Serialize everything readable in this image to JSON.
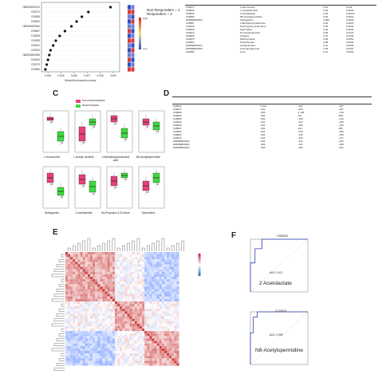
{
  "panels": {
    "a": "",
    "b": "",
    "c": "C",
    "d": "D",
    "e": "E",
    "f": "F"
  },
  "dotplot": {
    "labels": [
      "HMDB0062224",
      "C00072",
      "C00838",
      "C05842",
      "HMDB0062364",
      "C05587",
      "C16528",
      "C00059",
      "C05422",
      "C00300",
      "HMDB0062356",
      "C00060",
      "C03079",
      "C00864"
    ],
    "values": [
      0.0088,
      0.0071,
      0.0066,
      0.0062,
      0.0058,
      0.0053,
      0.0049,
      0.0046,
      0.0044,
      0.0042,
      0.0041,
      0.004,
      0.0039,
      0.0038
    ],
    "xticks": [
      "0.004",
      "0.005",
      "0.006",
      "0.007",
      "0.008",
      "0.009"
    ],
    "xlim": [
      0.0035,
      0.0095
    ],
    "xlabel": "MeanDecreaseAccuracy",
    "legend": "Non-Responders = 1\nResponders = 2",
    "colorbar_hi": "High",
    "colorbar_lo": "Low"
  },
  "table_b": {
    "rows": [
      [
        "C00072",
        "L-Homoserine",
        "0.01",
        "0.011"
      ],
      [
        "C00838",
        "L-Acetylcarnitine",
        "0.02",
        "0.0003"
      ],
      [
        "C05842",
        "2-Acetolactate",
        "0.04",
        "0.00147"
      ],
      [
        "C00059",
        "N8-Acetylspermidine",
        "0.04",
        "0.0013"
      ],
      [
        "HMDB0062364",
        "Sphinganine",
        "0.005",
        "0.0006"
      ],
      [
        "C05587",
        "2-Methylbutyrylcarnitine",
        "0.04",
        "0.0023"
      ],
      [
        "C16528",
        "5a-Pregnane-3,20-dione",
        "0.05",
        "0.0049"
      ],
      [
        "C00060",
        "Spermidine",
        "0.02",
        "0.0024"
      ],
      [
        "C05422",
        "N-Acetylputrescine",
        "0.06",
        "0.0170"
      ],
      [
        "C00300",
        "Creatine",
        "0.07",
        "0.0239"
      ],
      [
        "C03079",
        "Ribothymidine",
        "0.05",
        "0.0250"
      ],
      [
        "C00864",
        "Pantothenate",
        "0.08",
        "0.0233"
      ],
      [
        "HMDB0062224",
        "Acetylcarnitine",
        "0.10",
        "0.0305"
      ],
      [
        "HMDB0062356",
        "Aminoacylglycerol",
        "0.09",
        "0.0301"
      ],
      [
        "C00086",
        "Urea",
        "0.10",
        "0.0330"
      ]
    ]
  },
  "boxplots": {
    "legend": [
      "NON-RESPONDERS",
      "RESPONDERS"
    ],
    "colors": [
      "#e8417a",
      "#3ddb3d"
    ],
    "labels": [
      "L-Homoserine",
      "L-Acetyl carnitine",
      "2-Methylbutyrylcarnitine\nacid",
      "N8-Acetylspermidine",
      "Sphinganine",
      "2-Acetolactate",
      "5a-Pregnane-3,20-dione",
      "Spermidine"
    ]
  },
  "table_d": {
    "rows": [
      [
        "C05842",
        "0.001",
        "-.357",
        "-.457"
      ],
      [
        "C00072",
        ".001",
        "-.203",
        "-.457"
      ],
      [
        "C00838",
        ".000",
        "-1.136",
        "-.715"
      ],
      [
        "C00059",
        ".000",
        ".167",
        ".538"
      ],
      [
        "C16528",
        ".001",
        "-.169",
        "-.213"
      ],
      [
        "C05422",
        ".001",
        "-.221",
        "-.325"
      ],
      [
        "C00300",
        ".001",
        "-.205",
        "-.310"
      ],
      [
        "C05587",
        ".000",
        ".143",
        ".265"
      ],
      [
        "C00060",
        ".001",
        "-.152",
        "-.283"
      ],
      [
        "C00864",
        ".001",
        "-.118",
        "-.248"
      ],
      [
        "C03079",
        ".001",
        "-.119",
        "-.271"
      ],
      [
        "HMDB0062356",
        ".001",
        "-.113",
        "-.323"
      ],
      [
        "HMDB0062364",
        ".000",
        "-.141",
        "-.396"
      ],
      [
        "HMDB0062224",
        ".000",
        "-.156",
        "-.361"
      ]
    ]
  },
  "roc": [
    {
      "title": "C05842",
      "label": "2 Acetolactate",
      "auc": "AUC: 0.912"
    },
    {
      "title": "C11529",
      "label": "N8-Acetylspermidine",
      "auc": "AUC: 0.965"
    }
  ]
}
